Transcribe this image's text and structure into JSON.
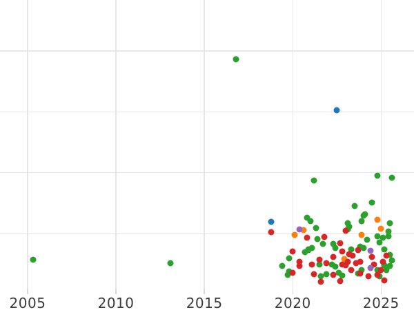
{
  "chart_data": {
    "type": "scatter",
    "title": "",
    "xlabel": "",
    "ylabel": "",
    "legend_position": "none",
    "grid": true,
    "x_axis": {
      "tick_years": [
        2005,
        2010,
        2015,
        2020,
        2025
      ],
      "tick_labels": [
        "2005",
        "2010",
        "2015",
        "2020",
        "2025"
      ],
      "range": [
        2003.45,
        2026.9
      ]
    },
    "y_axis": {
      "tick_labels": [],
      "gridline_values": [
        1,
        2,
        3,
        4
      ],
      "range": [
        0,
        4.84
      ]
    },
    "series": [
      {
        "name": "blue",
        "color": "#1f77b4",
        "points": [
          [
            2018.8,
            1.19
          ],
          [
            2022.5,
            3.03
          ]
        ]
      },
      {
        "name": "orange",
        "color": "#ff7f0e",
        "points": [
          [
            2020.1,
            0.97
          ],
          [
            2020.6,
            1.05
          ],
          [
            2022.9,
            0.58
          ],
          [
            2023.9,
            0.97
          ],
          [
            2024.8,
            1.22
          ],
          [
            2025.0,
            1.08
          ]
        ]
      },
      {
        "name": "green",
        "color": "#2ca02c",
        "points": [
          [
            2005.3,
            0.57
          ],
          [
            2013.1,
            0.51
          ],
          [
            2016.8,
            3.87
          ],
          [
            2021.2,
            1.87
          ],
          [
            2024.8,
            1.95
          ],
          [
            2025.6,
            1.91
          ],
          [
            2023.5,
            1.45
          ],
          [
            2024.5,
            1.51
          ],
          [
            2020.8,
            1.26
          ],
          [
            2021.0,
            1.2
          ],
          [
            2021.3,
            1.09
          ],
          [
            2023.1,
            1.17
          ],
          [
            2023.2,
            1.11
          ],
          [
            2023.9,
            1.2
          ],
          [
            2024.1,
            1.31
          ],
          [
            2024.0,
            1.29
          ],
          [
            2025.5,
            1.17
          ],
          [
            2023.1,
            1.07
          ],
          [
            2021.4,
            0.91
          ],
          [
            2021.7,
            0.83
          ],
          [
            2022.3,
            0.83
          ],
          [
            2022.4,
            0.76
          ],
          [
            2021.1,
            0.76
          ],
          [
            2020.9,
            0.72
          ],
          [
            2019.8,
            0.59
          ],
          [
            2019.4,
            0.46
          ],
          [
            2019.8,
            0.37
          ],
          [
            2020.7,
            0.69
          ],
          [
            2020.9,
            0.74
          ],
          [
            2021.5,
            0.49
          ],
          [
            2022.2,
            0.49
          ],
          [
            2022.4,
            0.45
          ],
          [
            2019.7,
            0.32
          ],
          [
            2021.6,
            0.29
          ],
          [
            2021.9,
            0.33
          ],
          [
            2022.6,
            0.35
          ],
          [
            2022.8,
            0.3
          ],
          [
            2024.9,
            0.29
          ],
          [
            2023.7,
            0.34
          ],
          [
            2024.2,
            0.89
          ],
          [
            2024.8,
            0.95
          ],
          [
            2025.1,
            0.93
          ],
          [
            2024.9,
            0.85
          ],
          [
            2025.4,
            1.03
          ],
          [
            2025.4,
            0.95
          ],
          [
            2023.3,
            0.74
          ],
          [
            2023.8,
            0.78
          ],
          [
            2024.0,
            0.76
          ],
          [
            2025.2,
            0.74
          ],
          [
            2025.5,
            0.65
          ],
          [
            2025.6,
            0.55
          ],
          [
            2025.5,
            0.46
          ],
          [
            2024.8,
            0.4
          ],
          [
            2025.2,
            0.48
          ],
          [
            2023.9,
            0.4
          ],
          [
            2025.3,
            0.4
          ]
        ]
      },
      {
        "name": "red",
        "color": "#d62728",
        "points": [
          [
            2018.8,
            1.02
          ],
          [
            2020.8,
            0.93
          ],
          [
            2021.8,
            0.94
          ],
          [
            2020.0,
            0.7
          ],
          [
            2020.4,
            0.53
          ],
          [
            2020.4,
            0.46
          ],
          [
            2020.0,
            0.35
          ],
          [
            2021.1,
            0.49
          ],
          [
            2021.5,
            0.57
          ],
          [
            2021.9,
            0.51
          ],
          [
            2022.3,
            0.61
          ],
          [
            2021.2,
            0.33
          ],
          [
            2021.6,
            0.2
          ],
          [
            2022.3,
            0.32
          ],
          [
            2022.7,
            0.21
          ],
          [
            2023.8,
            0.34
          ],
          [
            2024.3,
            0.29
          ],
          [
            2024.8,
            0.32
          ],
          [
            2025.2,
            0.22
          ],
          [
            2023.0,
            1.04
          ],
          [
            2022.7,
            0.84
          ],
          [
            2022.8,
            0.7
          ],
          [
            2023.2,
            0.66
          ],
          [
            2023.4,
            0.63
          ],
          [
            2023.7,
            0.72
          ],
          [
            2024.5,
            0.61
          ],
          [
            2025.3,
            0.63
          ],
          [
            2025.1,
            0.53
          ],
          [
            2025.0,
            0.4
          ],
          [
            2022.8,
            0.49
          ],
          [
            2023.0,
            0.48
          ],
          [
            2023.1,
            0.53
          ],
          [
            2023.6,
            0.51
          ],
          [
            2023.8,
            0.53
          ],
          [
            2024.6,
            0.49
          ],
          [
            2023.3,
            0.4
          ]
        ]
      },
      {
        "name": "purple",
        "color": "#9467bd",
        "points": [
          [
            2020.4,
            1.06
          ],
          [
            2024.4,
            0.71
          ],
          [
            2024.4,
            0.43
          ]
        ]
      }
    ]
  }
}
